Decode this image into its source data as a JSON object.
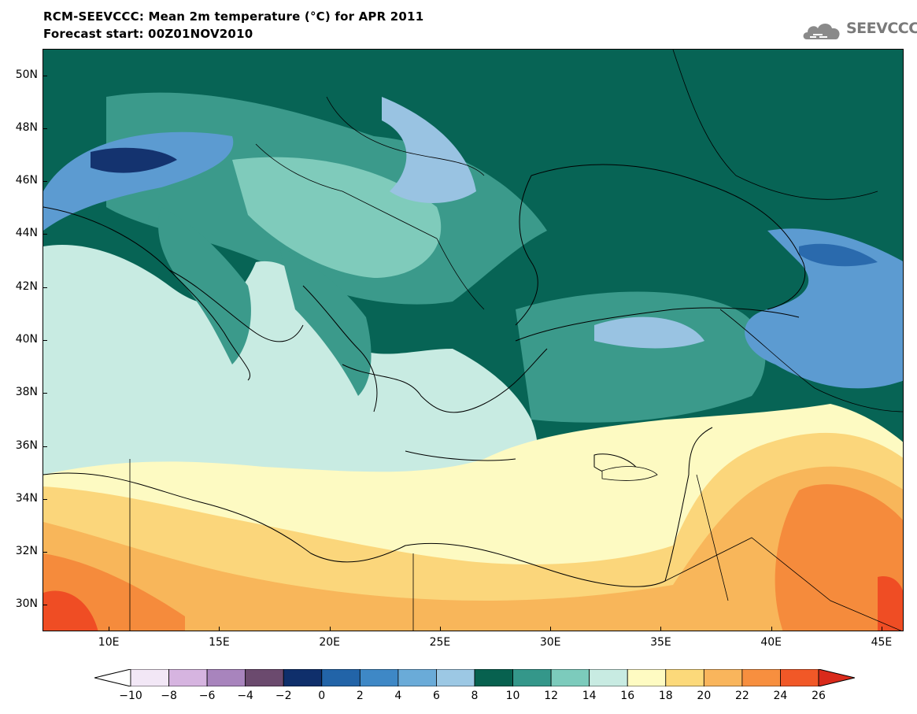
{
  "header": {
    "title": "RCM-SEEVCCC: Mean 2m temperature (°C) for APR 2011",
    "subtitle": "Forecast start: 00Z01NOV2010"
  },
  "logo": {
    "text": "SEEVCCC",
    "icon": "cloud-icon",
    "color": "#7a7a7a"
  },
  "map": {
    "lon_range": [
      7,
      46
    ],
    "lat_range": [
      29,
      51
    ],
    "lat_labels": [
      "50N",
      "48N",
      "46N",
      "44N",
      "42N",
      "40N",
      "38N",
      "36N",
      "34N",
      "32N",
      "30N"
    ],
    "lon_labels": [
      "10E",
      "15E",
      "20E",
      "25E",
      "30E",
      "35E",
      "40E",
      "45E"
    ],
    "colors": {
      "sea_cool": "#c8ebe2",
      "warm_band": "#fdfac2",
      "warm_20": "#fbd67b",
      "warm_22": "#f8b65a",
      "warm_24": "#f58b3c",
      "hot_26": "#ef4d24",
      "teal_10": "#076455",
      "teal_12": "#3b9a8b",
      "teal_14": "#7fcbbb",
      "blue_6": "#99c3e2",
      "blue_4": "#5c9bd1",
      "blue_2": "#2a6aad",
      "navy_0": "#14336f"
    }
  },
  "colorbar": {
    "labels": [
      "-10",
      "-8",
      "-6",
      "-4",
      "-2",
      "0",
      "2",
      "4",
      "6",
      "8",
      "10",
      "12",
      "14",
      "16",
      "18",
      "20",
      "22",
      "24",
      "26"
    ],
    "under_color": "#ffffff",
    "over_color": "#d92a1b",
    "colors": [
      "#f2e7f6",
      "#d6b4e0",
      "#a884bd",
      "#6b4a6e",
      "#0f2f6b",
      "#2264a8",
      "#3e88c6",
      "#6aabd8",
      "#9cc8e4",
      "#07614f",
      "#34978a",
      "#7ccbbc",
      "#c8ebe2",
      "#fefbc2",
      "#fcd97a",
      "#f9b55c",
      "#f78f3f",
      "#f15827"
    ]
  }
}
